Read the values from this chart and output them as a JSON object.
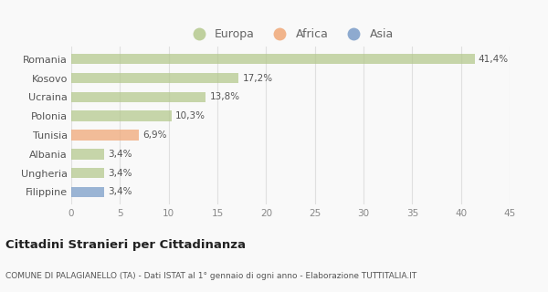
{
  "categories": [
    "Romania",
    "Kosovo",
    "Ucraina",
    "Polonia",
    "Tunisia",
    "Albania",
    "Ungheria",
    "Filippine"
  ],
  "values": [
    41.4,
    17.2,
    13.8,
    10.3,
    6.9,
    3.4,
    3.4,
    3.4
  ],
  "labels": [
    "41,4%",
    "17,2%",
    "13,8%",
    "10,3%",
    "6,9%",
    "3,4%",
    "3,4%",
    "3,4%"
  ],
  "colors": [
    "#b5c98e",
    "#b5c98e",
    "#b5c98e",
    "#b5c98e",
    "#f0a878",
    "#b5c98e",
    "#b5c98e",
    "#7b9dc8"
  ],
  "legend_labels": [
    "Europa",
    "Africa",
    "Asia"
  ],
  "legend_colors": [
    "#b5c98e",
    "#f0a878",
    "#7b9dc8"
  ],
  "xlim": [
    0,
    45
  ],
  "xticks": [
    0,
    5,
    10,
    15,
    20,
    25,
    30,
    35,
    40,
    45
  ],
  "title": "Cittadini Stranieri per Cittadinanza",
  "subtitle": "COMUNE DI PALAGIANELLO (TA) - Dati ISTAT al 1° gennaio di ogni anno - Elaborazione TUTTITALIA.IT",
  "bg_color": "#f9f9f9",
  "grid_color": "#e0e0e0",
  "bar_alpha": 0.75
}
